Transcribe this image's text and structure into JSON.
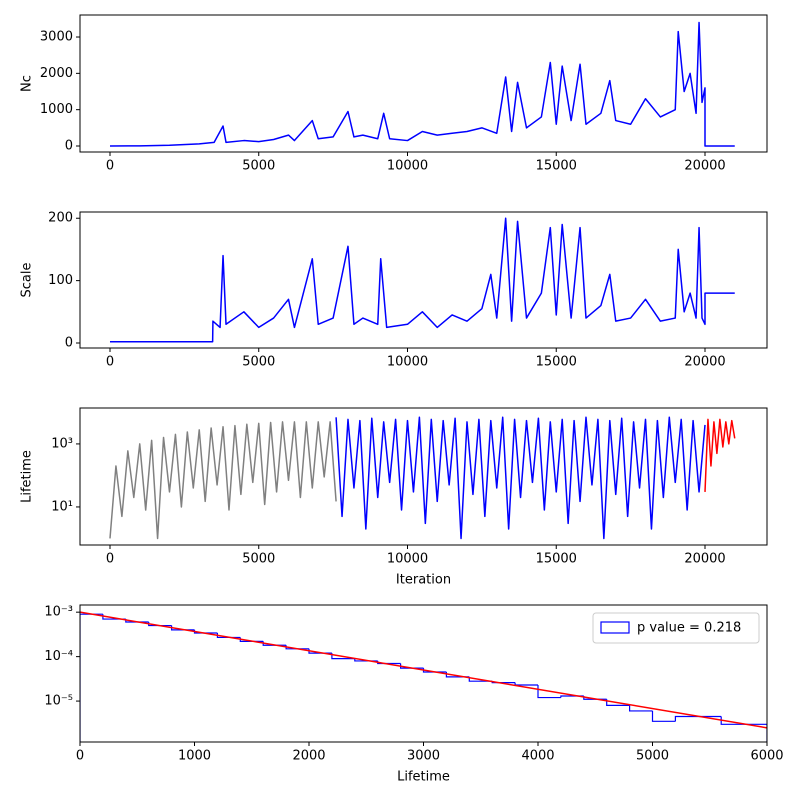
{
  "chart_data": [
    {
      "type": "line",
      "ylabel": "Nc",
      "xlim": [
        -1008,
        22084
      ],
      "ylim": [
        -165,
        3606
      ],
      "xticks": [
        0,
        5000,
        10000,
        15000,
        20000
      ],
      "yticks": [
        0,
        1000,
        2000,
        3000
      ],
      "series": [
        {
          "color": "#0000ff",
          "x": [
            0,
            1000,
            2000,
            3000,
            3500,
            3800,
            3900,
            4500,
            5000,
            5500,
            6000,
            6200,
            6800,
            7000,
            7500,
            8000,
            8200,
            8500,
            9000,
            9200,
            9400,
            10000,
            10500,
            11000,
            11500,
            12000,
            12500,
            13000,
            13300,
            13500,
            13700,
            14000,
            14500,
            14800,
            15000,
            15200,
            15500,
            15800,
            16000,
            16500,
            16800,
            17000,
            17500,
            18000,
            18500,
            19000,
            19100,
            19300,
            19500,
            19700,
            19800,
            19900,
            20000,
            20000,
            21000
          ],
          "values": [
            0,
            5,
            20,
            60,
            100,
            550,
            100,
            150,
            120,
            180,
            300,
            150,
            700,
            200,
            250,
            950,
            250,
            300,
            200,
            900,
            200,
            150,
            400,
            300,
            350,
            400,
            500,
            350,
            1900,
            400,
            1750,
            500,
            800,
            2300,
            600,
            2200,
            700,
            2250,
            600,
            900,
            1800,
            700,
            600,
            1300,
            800,
            1000,
            3150,
            1500,
            2000,
            900,
            3400,
            1200,
            1600,
            0,
            0
          ]
        }
      ]
    },
    {
      "type": "line",
      "ylabel": "Scale",
      "xlim": [
        -1008,
        22084
      ],
      "ylim": [
        -8,
        210
      ],
      "xticks": [
        0,
        5000,
        10000,
        15000,
        20000
      ],
      "yticks": [
        0,
        100,
        200
      ],
      "series": [
        {
          "color": "#0000ff",
          "x": [
            0,
            3450,
            3460,
            3700,
            3800,
            3900,
            4500,
            5000,
            5500,
            6000,
            6200,
            6800,
            7000,
            7500,
            8000,
            8200,
            8500,
            9000,
            9100,
            9300,
            10000,
            10500,
            11000,
            11500,
            12000,
            12500,
            12800,
            13000,
            13300,
            13500,
            13700,
            14000,
            14500,
            14800,
            15000,
            15200,
            15500,
            15800,
            16000,
            16500,
            16800,
            17000,
            17500,
            18000,
            18500,
            19000,
            19100,
            19300,
            19500,
            19700,
            19800,
            19900,
            20000,
            20000,
            21000
          ],
          "values": [
            2,
            2,
            35,
            25,
            140,
            30,
            50,
            25,
            40,
            70,
            25,
            135,
            30,
            40,
            155,
            30,
            40,
            30,
            135,
            25,
            30,
            50,
            25,
            45,
            35,
            55,
            110,
            40,
            200,
            35,
            195,
            40,
            80,
            185,
            45,
            190,
            40,
            185,
            40,
            60,
            110,
            35,
            40,
            70,
            35,
            40,
            150,
            50,
            80,
            40,
            185,
            40,
            30,
            80,
            80
          ]
        }
      ]
    },
    {
      "type": "line",
      "ylog": true,
      "ylabel": "Lifetime",
      "xlabel": "Iteration",
      "xlim": [
        -1008,
        22084
      ],
      "ylim": [
        0.62,
        13800
      ],
      "xticks": [
        0,
        5000,
        10000,
        15000,
        20000
      ],
      "yticks": [
        {
          "value": 10,
          "label": "10¹"
        },
        {
          "value": 1000,
          "label": "10³"
        }
      ],
      "series": [
        {
          "color": "#808080",
          "x": [
            0,
            200,
            400,
            600,
            800,
            1000,
            1200,
            1400,
            1600,
            1800,
            2000,
            2200,
            2400,
            2600,
            2800,
            3000,
            3200,
            3400,
            3600,
            3800,
            4000,
            4200,
            4400,
            4600,
            4800,
            5000,
            5200,
            5400,
            5600,
            5800,
            6000,
            6200,
            6400,
            6600,
            6800,
            7000,
            7200,
            7400,
            7600
          ],
          "values": [
            1,
            200,
            5,
            600,
            20,
            1000,
            8,
            1300,
            1,
            1600,
            30,
            2000,
            10,
            2400,
            40,
            2800,
            15,
            3200,
            50,
            3500,
            8,
            3800,
            25,
            4200,
            60,
            4500,
            12,
            4800,
            30,
            5000,
            70,
            5000,
            20,
            5000,
            40,
            5000,
            90,
            5000,
            15
          ]
        },
        {
          "color": "#0000ff",
          "x": [
            7600,
            7800,
            8000,
            8200,
            8400,
            8600,
            8800,
            9000,
            9200,
            9400,
            9600,
            9800,
            10000,
            10200,
            10400,
            10600,
            10800,
            11000,
            11200,
            11400,
            11600,
            11800,
            12000,
            12200,
            12400,
            12600,
            12800,
            13000,
            13200,
            13400,
            13600,
            13800,
            14000,
            14200,
            14400,
            14600,
            14800,
            15000,
            15200,
            15400,
            15600,
            15800,
            16000,
            16200,
            16400,
            16600,
            16800,
            17000,
            17200,
            17400,
            17600,
            17800,
            18000,
            18200,
            18400,
            18600,
            18800,
            19000,
            19200,
            19400,
            19600,
            19800,
            20000
          ],
          "values": [
            7000,
            5,
            6000,
            40,
            5500,
            2,
            6500,
            20,
            5000,
            60,
            6000,
            8,
            5500,
            30,
            7000,
            3,
            6000,
            15,
            5500,
            50,
            6500,
            1,
            5000,
            25,
            6000,
            5,
            5500,
            40,
            7000,
            2,
            6000,
            20,
            5500,
            60,
            6500,
            8,
            5000,
            30,
            6000,
            3,
            5500,
            15,
            7000,
            50,
            6000,
            1,
            5500,
            25,
            6500,
            5,
            5000,
            40,
            6000,
            2,
            5500,
            20,
            7000,
            60,
            6000,
            8,
            5500,
            30,
            4000
          ]
        },
        {
          "color": "#ff0000",
          "x": [
            20000,
            20100,
            20200,
            20300,
            20400,
            20500,
            20600,
            20700,
            20800,
            20900,
            21000
          ],
          "values": [
            30,
            6000,
            200,
            5000,
            500,
            6000,
            800,
            5000,
            1000,
            5500,
            1500
          ]
        }
      ]
    },
    {
      "type": "histogram",
      "ylog": true,
      "xlabel": "Lifetime",
      "xlim": [
        0,
        6000
      ],
      "ylim": [
        1.2e-06,
        0.00145
      ],
      "xticks": [
        0,
        1000,
        2000,
        3000,
        4000,
        5000,
        6000
      ],
      "yticks": [
        {
          "value": 0.001,
          "label": "10⁻³"
        },
        {
          "value": 0.0001,
          "label": "10⁻⁴"
        },
        {
          "value": 1e-05,
          "label": "10⁻⁵"
        }
      ],
      "legend": "upper right",
      "series": [
        {
          "type": "histogram",
          "name": "p value = 0.218",
          "color": "#0000ff",
          "bins": [
            0,
            200,
            400,
            600,
            800,
            1000,
            1200,
            1400,
            1600,
            1800,
            2000,
            2200,
            2400,
            2600,
            2800,
            3000,
            3200,
            3400,
            3600,
            3800,
            4000,
            4200,
            4400,
            4600,
            4800,
            5000,
            5200,
            5400,
            5600,
            5800,
            6000
          ],
          "values": [
            0.0009,
            0.0007,
            0.0006,
            0.0005,
            0.0004,
            0.00034,
            0.00027,
            0.00022,
            0.00018,
            0.00015,
            0.00012,
            9e-05,
            8e-05,
            7e-05,
            5.5e-05,
            4.5e-05,
            3.5e-05,
            2.8e-05,
            2.6e-05,
            2.3e-05,
            1.2e-05,
            1.3e-05,
            1.1e-05,
            8e-06,
            6e-06,
            3.5e-06,
            4.5e-06,
            4.5e-06,
            3e-06,
            3e-06
          ]
        },
        {
          "type": "line",
          "color": "#ff0000",
          "x": [
            0,
            6000
          ],
          "values": [
            0.001,
            2.5e-06
          ]
        }
      ]
    }
  ]
}
